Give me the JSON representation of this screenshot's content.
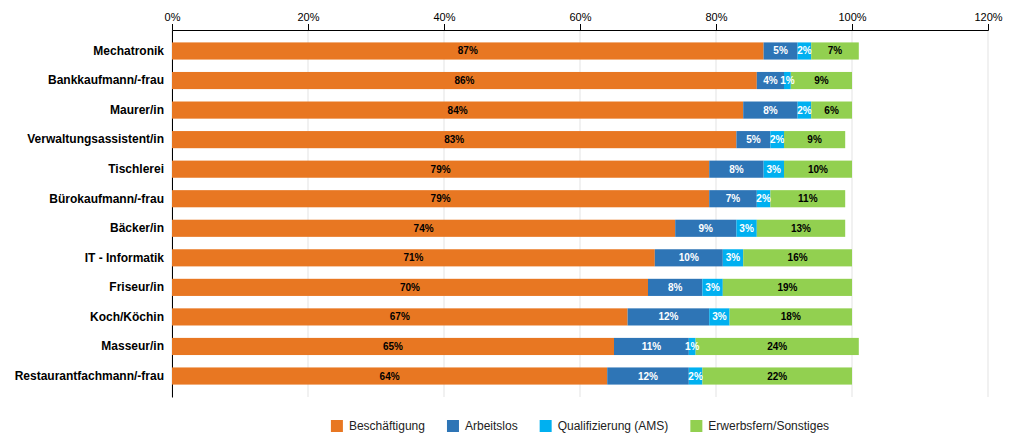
{
  "chart_data": {
    "type": "bar",
    "orientation": "horizontal",
    "stacked": true,
    "categories": [
      "Mechatronik",
      "Bankkaufmann/-frau",
      "Maurer/in",
      "Verwaltungsassistent/in",
      "Tischlerei",
      "Bürokaufmann/-frau",
      "Bäcker/in",
      "IT - Informatik",
      "Friseur/in",
      "Koch/Köchin",
      "Masseur/in",
      "Restaurantfachmann/-frau"
    ],
    "series": [
      {
        "name": "Beschäftigung",
        "color": "#E87722",
        "values": [
          87,
          86,
          84,
          83,
          79,
          79,
          74,
          71,
          70,
          67,
          65,
          64
        ],
        "value_labels": [
          "87%",
          "86%",
          "84%",
          "83%",
          "79%",
          "79%",
          "74%",
          "71%",
          "70%",
          "67%",
          "65%",
          "64%"
        ]
      },
      {
        "name": "Arbeitslos",
        "color": "#2E75B6",
        "values": [
          5,
          4,
          8,
          5,
          8,
          7,
          9,
          10,
          8,
          12,
          11,
          12
        ],
        "value_labels": [
          "5%",
          "4%",
          "8%",
          "5%",
          "8%",
          "7%",
          "9%",
          "10%",
          "8%",
          "12%",
          "11%",
          "12%"
        ]
      },
      {
        "name": "Qualifizierung (AMS)",
        "color": "#00B0F0",
        "values": [
          2,
          1,
          2,
          2,
          3,
          2,
          3,
          3,
          3,
          3,
          1,
          2
        ],
        "value_labels": [
          "2%",
          "1%",
          "2%",
          "2%",
          "3%",
          "2%",
          "3%",
          "3%",
          "3%",
          "3%",
          "1%",
          "2%"
        ]
      },
      {
        "name": "Erwerbsfern/Sonstiges",
        "color": "#92D050",
        "values": [
          7,
          9,
          6,
          9,
          10,
          11,
          13,
          16,
          19,
          18,
          24,
          22
        ],
        "value_labels": [
          "7%",
          "9%",
          "6%",
          "9%",
          "10%",
          "11%",
          "13%",
          "16%",
          "19%",
          "18%",
          "24%",
          "22%"
        ]
      }
    ],
    "xlim": [
      0,
      120
    ],
    "xticks": [
      {
        "value": 0,
        "label": "0%"
      },
      {
        "value": 20,
        "label": "20%"
      },
      {
        "value": 40,
        "label": "40%"
      },
      {
        "value": 60,
        "label": "60%"
      },
      {
        "value": 80,
        "label": "80%"
      },
      {
        "value": 100,
        "label": "100%"
      },
      {
        "value": 120,
        "label": "120%"
      }
    ],
    "grid": true,
    "data_labels": true,
    "legend": "bottom"
  }
}
